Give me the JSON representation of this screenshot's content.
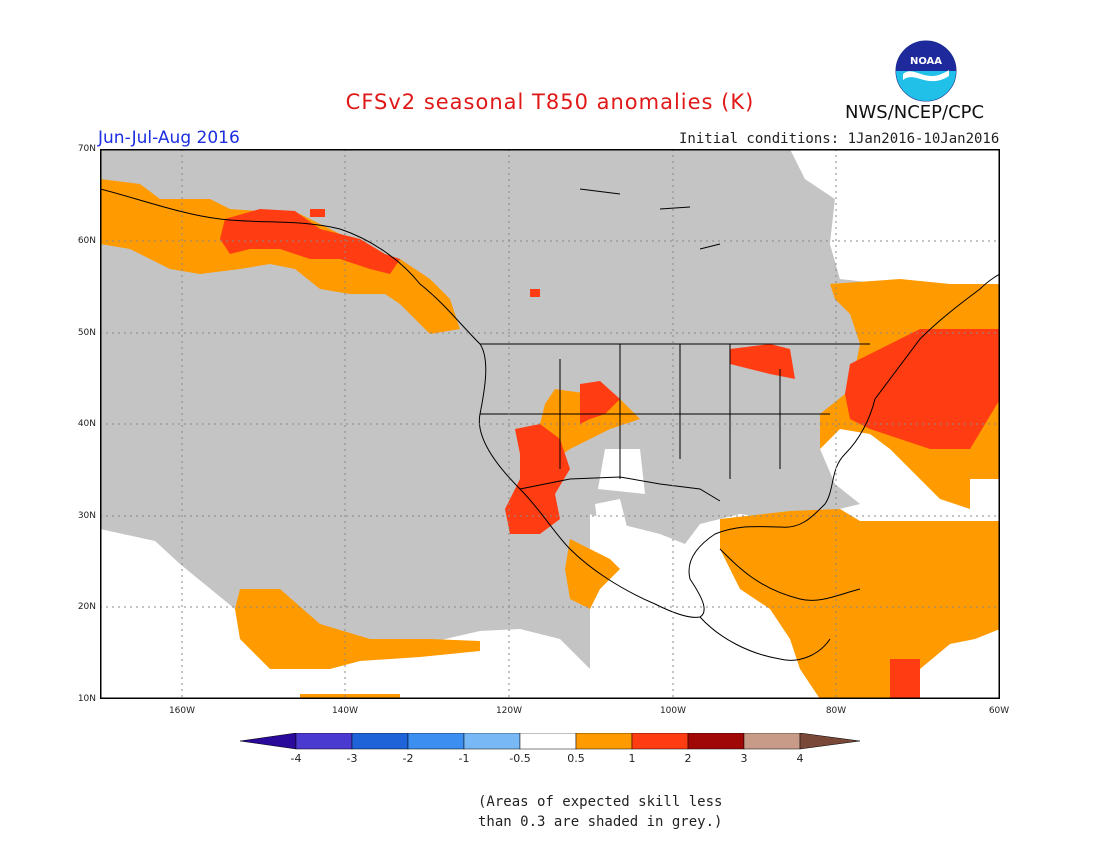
{
  "header": {
    "title": "CFSv2 seasonal T850 anomalies (K)",
    "period": "Jun-Jul-Aug 2016",
    "initial_conditions": "Initial conditions: 1Jan2016-10Jan2016",
    "agency": "NWS/NCEP/CPC",
    "logo_text": "NOAA"
  },
  "map": {
    "lat_labels": [
      "70N",
      "60N",
      "50N",
      "40N",
      "30N",
      "20N",
      "10N"
    ],
    "lon_labels": [
      "160W",
      "140W",
      "120W",
      "100W",
      "80W",
      "60W"
    ],
    "lat_range": [
      10,
      70
    ],
    "lon_range": [
      -170,
      -60
    ]
  },
  "colorbar": {
    "labels": [
      "-4",
      "-3",
      "-2",
      "-1",
      "-0.5",
      "0.5",
      "1",
      "2",
      "3",
      "4"
    ],
    "colors": [
      "#2a0a9a",
      "#4a3ad0",
      "#1e64d8",
      "#3c8ef0",
      "#78b8f4",
      "#ffffff",
      "#ff9a00",
      "#ff3c12",
      "#a00808",
      "#c89a88",
      "#7a4838"
    ]
  },
  "legend_note": {
    "line1": "(Areas of expected skill less",
    "line2": "than 0.3 are shaded in grey.)"
  },
  "fill_colors": {
    "grey": "#c4c4c4",
    "orange": "#ff9a00",
    "red": "#ff3c12"
  }
}
